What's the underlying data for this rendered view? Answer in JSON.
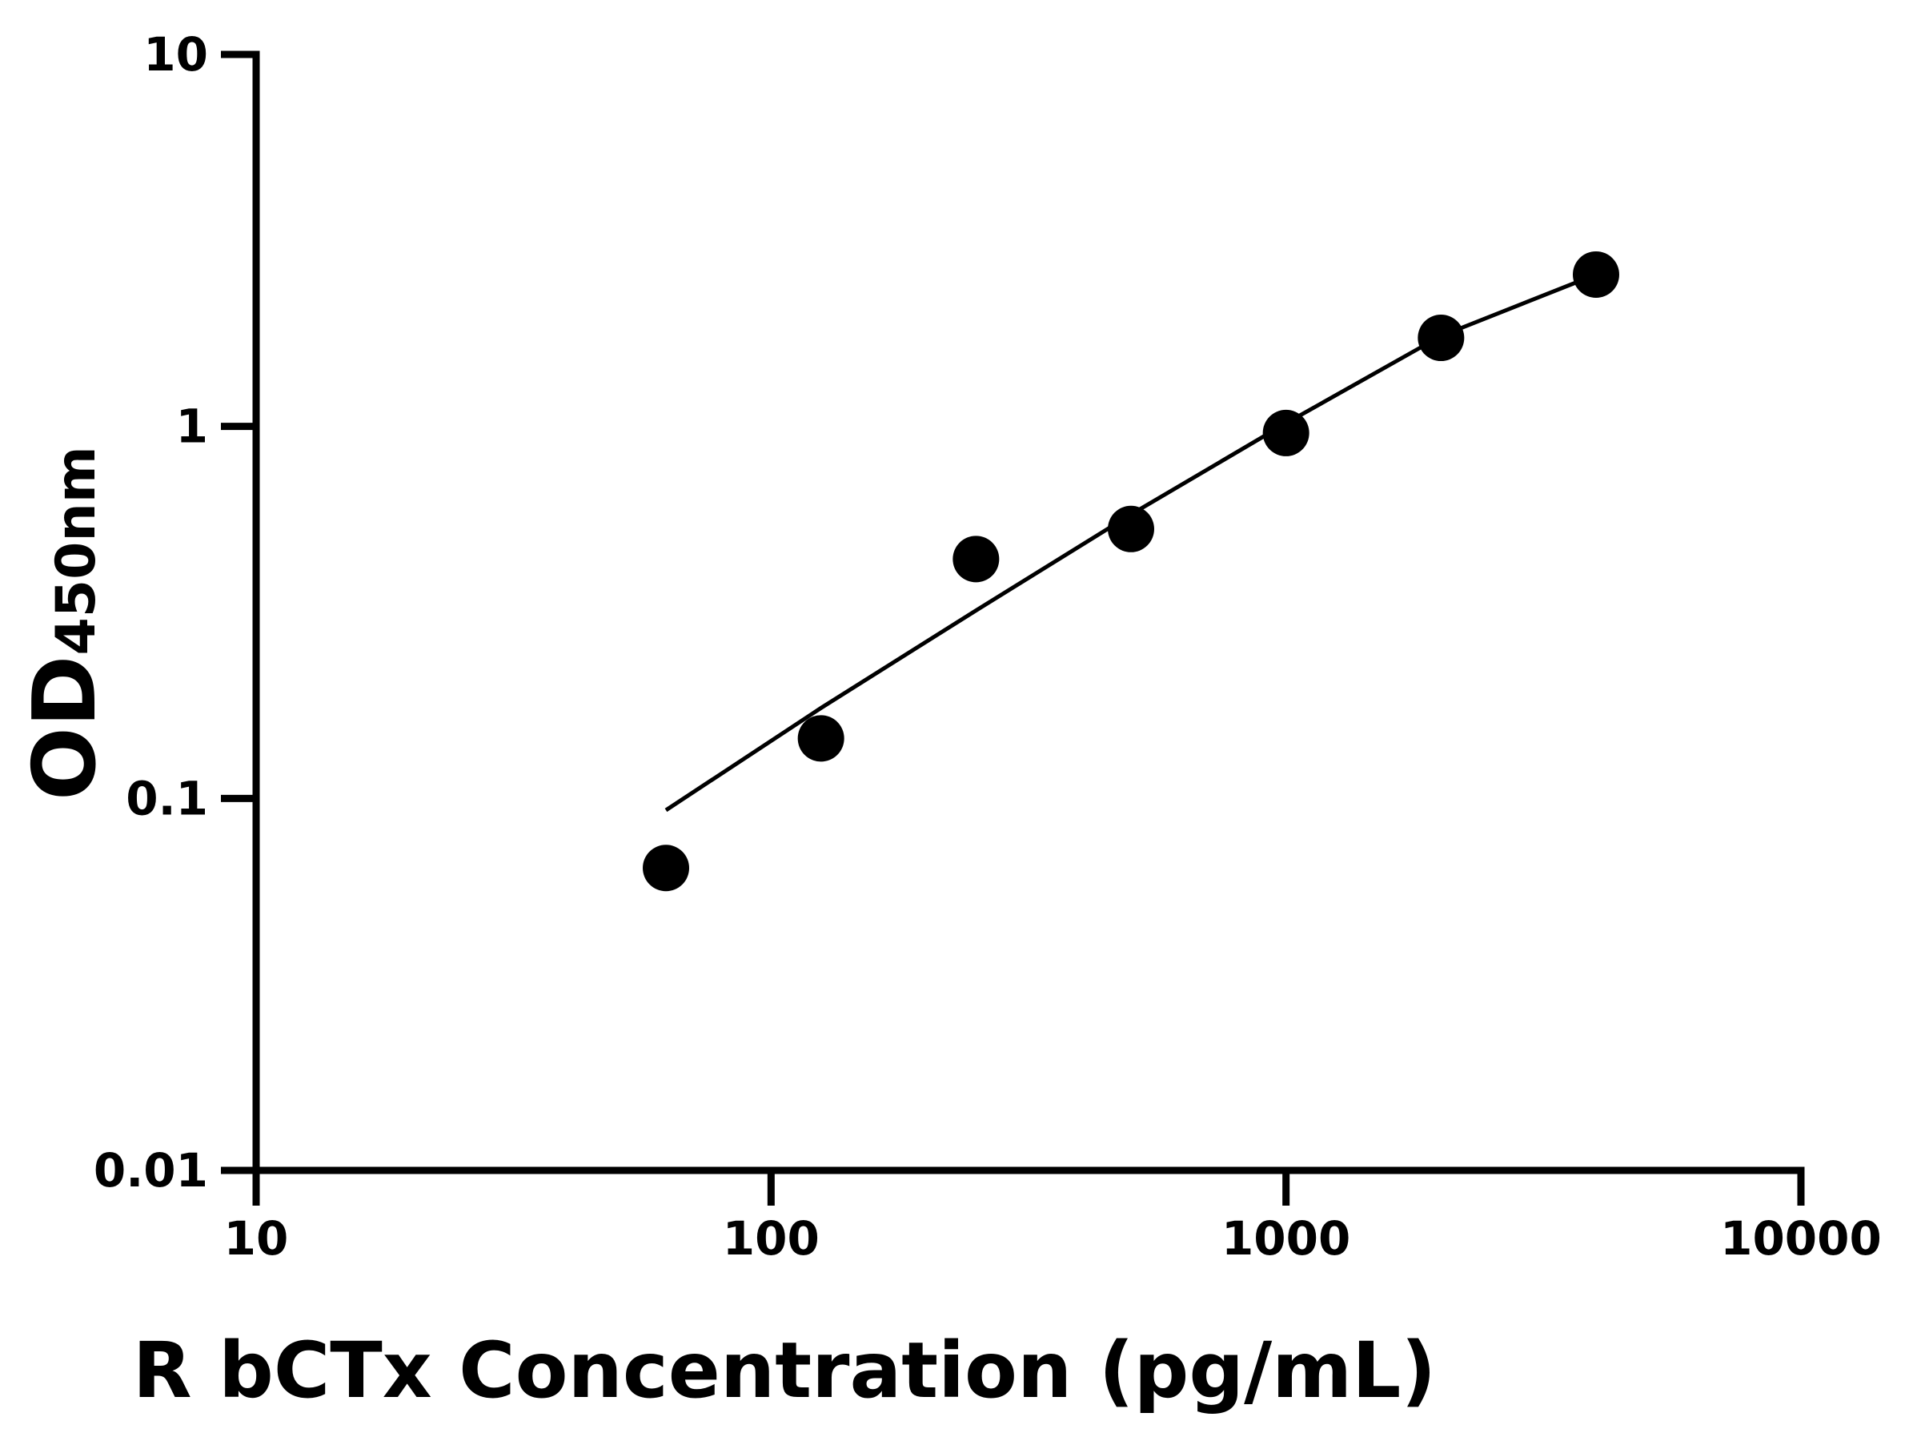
{
  "chart_data": {
    "type": "scatter",
    "xscale": "log",
    "yscale": "log",
    "xlim": [
      10,
      10000
    ],
    "ylim": [
      0.01,
      10
    ],
    "xlabel": "R bCTx Concentration (pg/mL)",
    "ylabel_main": "OD",
    "ylabel_sub": "450nm",
    "x_ticks": [
      "10",
      "100",
      "1000",
      "10000"
    ],
    "y_ticks": [
      "0.01",
      "0.1",
      "1",
      "10"
    ],
    "grid": false,
    "legend": "none",
    "series": [
      {
        "type": "points",
        "x": [
          62.5,
          125,
          250,
          500,
          1000,
          2000,
          4000
        ],
        "y": [
          0.065,
          0.145,
          0.44,
          0.53,
          0.96,
          1.73,
          2.56
        ]
      },
      {
        "type": "fit-line",
        "x": [
          62.5,
          125,
          250,
          500,
          1000,
          2000,
          4000
        ],
        "y": [
          0.093,
          0.175,
          0.32,
          0.58,
          1.02,
          1.75,
          2.56
        ]
      }
    ],
    "colors": {
      "axis": "#000000",
      "marker": "#000000",
      "line": "#000000"
    }
  }
}
